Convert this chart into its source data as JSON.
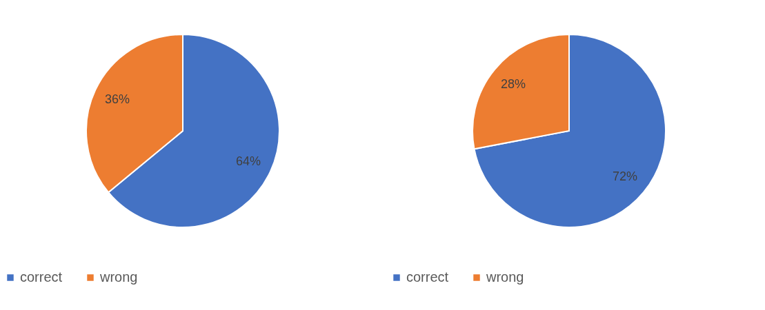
{
  "chart_data": [
    {
      "type": "pie",
      "categories": [
        "correct",
        "wrong"
      ],
      "values": [
        64,
        36
      ],
      "colors": [
        "#4472c4",
        "#ed7d31"
      ],
      "value_labels": [
        "64%",
        "36%"
      ],
      "legend": "bottom"
    },
    {
      "type": "pie",
      "categories": [
        "correct",
        "wrong"
      ],
      "values": [
        72,
        28
      ],
      "colors": [
        "#4472c4",
        "#ed7d31"
      ],
      "value_labels": [
        "72%",
        "28%"
      ],
      "legend": "bottom"
    }
  ]
}
